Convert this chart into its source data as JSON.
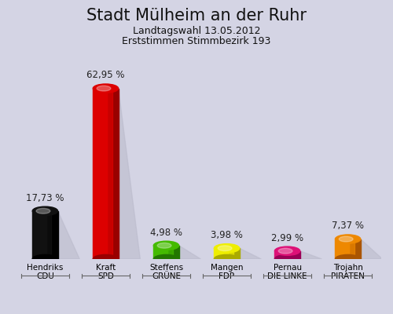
{
  "title": "Stadt Mülheim an der Ruhr",
  "subtitle1": "Landtagswahl 13.05.2012",
  "subtitle2": "Erststimmen Stimmbezirk 193",
  "categories": [
    "Hendriks\nCDU",
    "Kraft\nSPD",
    "Steffens\nGRÜNE",
    "Mangen\nFDP",
    "Pernau\nDIE LINKE",
    "Trojahn\nPIRATEN"
  ],
  "values": [
    17.73,
    62.95,
    4.98,
    3.98,
    2.99,
    7.37
  ],
  "labels": [
    "17,73 %",
    "62,95 %",
    "4,98 %",
    "3,98 %",
    "2,99 %",
    "7,37 %"
  ],
  "bar_colors": [
    "#111111",
    "#dd0000",
    "#44bb00",
    "#eeee00",
    "#dd1177",
    "#ee8800"
  ],
  "bar_dark_colors": [
    "#000000",
    "#990000",
    "#227700",
    "#aaaa00",
    "#990055",
    "#aa5500"
  ],
  "background_color": "#d4d4e4",
  "title_fontsize": 15,
  "subtitle_fontsize": 9,
  "label_fontsize": 8.5,
  "tick_fontsize": 7.5
}
